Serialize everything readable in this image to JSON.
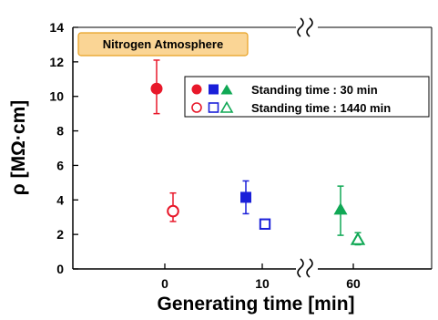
{
  "chart_data": {
    "type": "scatter",
    "ylabel": "ρ  [MΩ·cm]",
    "xlabel": "Generating time   [min]",
    "ylim": [
      0,
      14
    ],
    "yticks": [
      "0",
      "2",
      "4",
      "6",
      "8",
      "10",
      "12",
      "14"
    ],
    "xticks": [
      "0",
      "10",
      "60"
    ],
    "axis_break": "between 10 and 60",
    "annotation": "Nitrogen Atmosphere",
    "legend": [
      {
        "label": "Standing time : 30 min",
        "filled": true
      },
      {
        "label": "Standing time : 1440 min",
        "filled": false
      }
    ],
    "colors": {
      "red": "#e8182a",
      "blue": "#1a1fd9",
      "green": "#10a855"
    },
    "series": [
      {
        "x_label": "0",
        "standing": "30 min",
        "marker": "circle",
        "filled": true,
        "color": "#e8182a",
        "y": 10.45,
        "err_low": 9.0,
        "err_high": 12.1
      },
      {
        "x_label": "0",
        "standing": "1440 min",
        "marker": "circle",
        "filled": false,
        "color": "#e8182a",
        "y": 3.35,
        "err_low": 2.75,
        "err_high": 4.4
      },
      {
        "x_label": "10",
        "standing": "30 min",
        "marker": "square",
        "filled": true,
        "color": "#1a1fd9",
        "y": 4.15,
        "err_low": 3.2,
        "err_high": 5.1
      },
      {
        "x_label": "10",
        "standing": "1440 min",
        "marker": "square",
        "filled": false,
        "color": "#1a1fd9",
        "y": 2.6,
        "err_low": 2.45,
        "err_high": 2.75
      },
      {
        "x_label": "60",
        "standing": "30 min",
        "marker": "triangle",
        "filled": true,
        "color": "#10a855",
        "y": 3.45,
        "err_low": 1.95,
        "err_high": 4.8
      },
      {
        "x_label": "60",
        "standing": "1440 min",
        "marker": "triangle",
        "filled": false,
        "color": "#10a855",
        "y": 1.7,
        "err_low": 1.4,
        "err_high": 2.1
      }
    ]
  }
}
